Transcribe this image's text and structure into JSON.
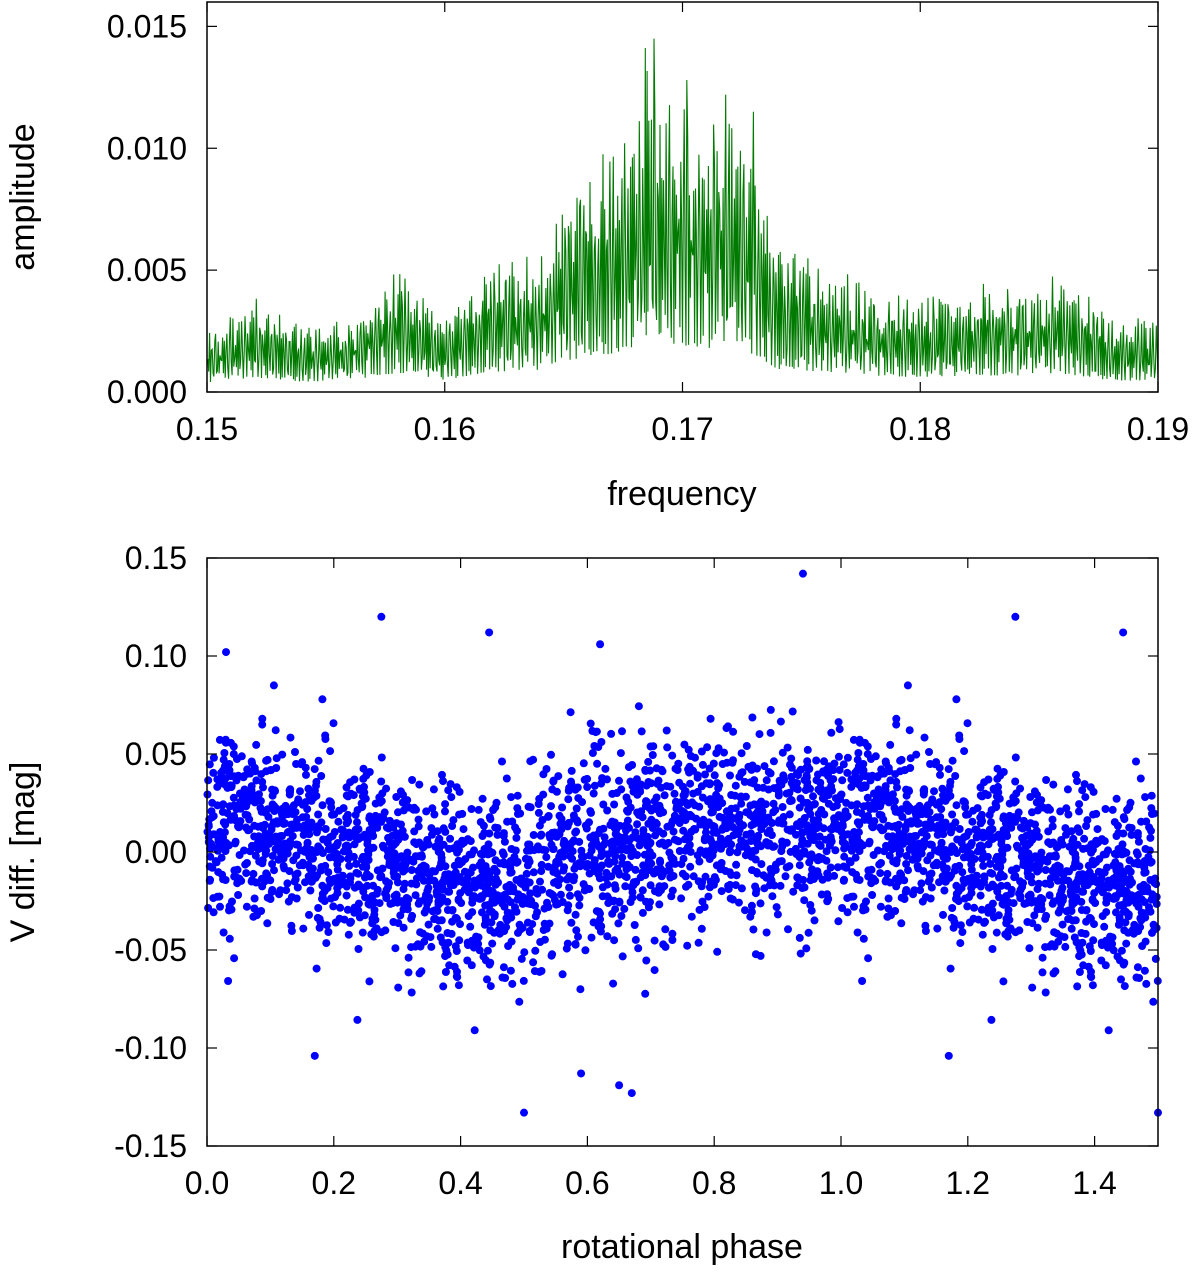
{
  "chart_data": [
    {
      "type": "line",
      "xlabel": "frequency",
      "ylabel": "amplitude",
      "xlim": [
        0.15,
        0.19
      ],
      "ylim": [
        0.0,
        0.016
      ],
      "x_ticks": [
        "0.15",
        "0.16",
        "0.17",
        "0.18",
        "0.19"
      ],
      "y_ticks": [
        "0.000",
        "0.005",
        "0.010",
        "0.015"
      ],
      "grid": false,
      "colors": {
        "series": "#007a00"
      },
      "envelope": {
        "x": [
          0.15,
          0.152,
          0.154,
          0.156,
          0.158,
          0.16,
          0.162,
          0.164,
          0.165,
          0.166,
          0.1675,
          0.1685,
          0.169,
          0.17,
          0.171,
          0.172,
          0.173,
          0.174,
          0.176,
          0.178,
          0.18,
          0.182,
          0.184,
          0.186,
          0.188,
          0.19
        ],
        "peak": [
          0.0025,
          0.004,
          0.0028,
          0.0032,
          0.0052,
          0.0033,
          0.0055,
          0.006,
          0.0085,
          0.0095,
          0.011,
          0.0145,
          0.013,
          0.0128,
          0.012,
          0.0122,
          0.01,
          0.0063,
          0.0055,
          0.0045,
          0.004,
          0.0045,
          0.0045,
          0.005,
          0.0032,
          0.003
        ]
      },
      "peaks_labeled": [
        {
          "x": 0.1688,
          "y": 0.0145
        },
        {
          "x": 0.1702,
          "y": 0.0128
        },
        {
          "x": 0.1718,
          "y": 0.0122
        },
        {
          "x": 0.173,
          "y": 0.0115
        }
      ]
    },
    {
      "type": "scatter",
      "xlabel": "rotational phase",
      "ylabel": "V diff. [mag]",
      "xlim": [
        0.0,
        1.5
      ],
      "ylim": [
        -0.15,
        0.15
      ],
      "x_ticks": [
        "0.0",
        "0.2",
        "0.4",
        "0.6",
        "0.8",
        "1.0",
        "1.2",
        "1.4"
      ],
      "y_ticks": [
        "-0.15",
        "-0.10",
        "-0.05",
        "0.00",
        "0.05",
        "0.10",
        "0.15"
      ],
      "grid": false,
      "colors": {
        "series": "#0000ff"
      },
      "trend": {
        "phase": [
          0.0,
          0.1,
          0.2,
          0.3,
          0.4,
          0.5,
          0.6,
          0.7,
          0.8,
          0.9,
          1.0
        ],
        "mean": [
          0.015,
          0.012,
          0.0,
          -0.012,
          -0.02,
          -0.015,
          0.0,
          0.008,
          0.012,
          0.01,
          0.015
        ]
      },
      "outliers": [
        {
          "x": 0.94,
          "y": 0.142
        },
        {
          "x": 0.275,
          "y": 0.12
        },
        {
          "x": 1.275,
          "y": 0.12
        },
        {
          "x": 0.445,
          "y": 0.112
        },
        {
          "x": 1.445,
          "y": 0.112
        },
        {
          "x": 0.62,
          "y": 0.106
        },
        {
          "x": 0.03,
          "y": 0.102
        },
        {
          "x": 0.17,
          "y": -0.104
        },
        {
          "x": 1.17,
          "y": -0.104
        },
        {
          "x": 0.5,
          "y": -0.133
        },
        {
          "x": 1.5,
          "y": -0.133
        },
        {
          "x": 0.67,
          "y": -0.123
        },
        {
          "x": 0.65,
          "y": -0.119
        },
        {
          "x": 0.59,
          "y": -0.113
        }
      ]
    }
  ]
}
